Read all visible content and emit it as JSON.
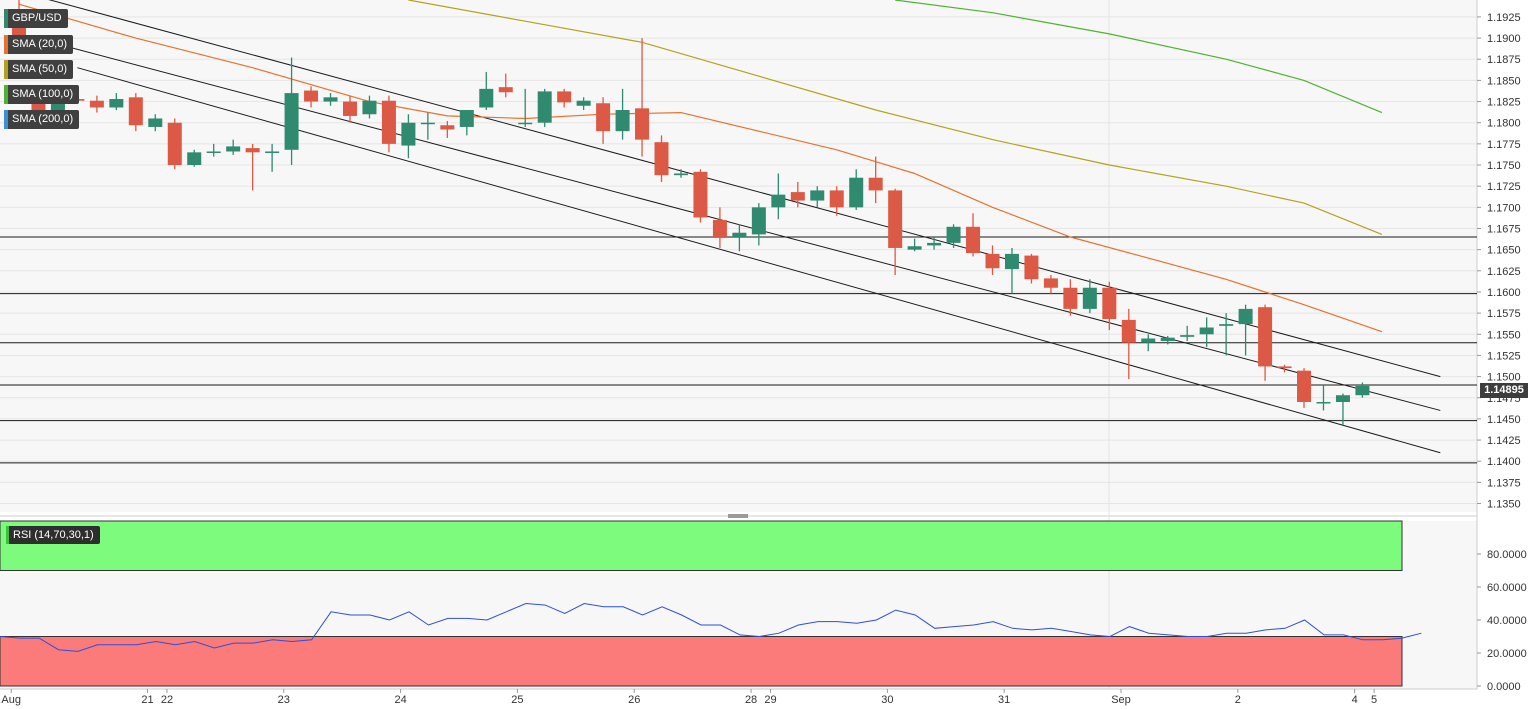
{
  "chart_data": [
    {
      "type": "candlestick",
      "title": "GBP/USD",
      "indicators": [
        {
          "name": "SMA (20,0)",
          "color": "#e8722d"
        },
        {
          "name": "SMA (50,0)",
          "color": "#b5a21c"
        },
        {
          "name": "SMA (100,0)",
          "color": "#4fb32f"
        },
        {
          "name": "SMA (200,0)",
          "color": "#3a8fd6"
        }
      ],
      "current_price": "1.14895",
      "ylim": [
        1.134,
        1.1945
      ],
      "y_ticks": [
        "1.1925",
        "1.1900",
        "1.1875",
        "1.1850",
        "1.1825",
        "1.1800",
        "1.1775",
        "1.1750",
        "1.1725",
        "1.1700",
        "1.1675",
        "1.1650",
        "1.1625",
        "1.1600",
        "1.1575",
        "1.1550",
        "1.1525",
        "1.1500",
        "1.1475",
        "1.1450",
        "1.1425",
        "1.1400",
        "1.1375",
        "1.1350"
      ],
      "x_labels": [
        {
          "label": "Aug",
          "i": 0
        },
        {
          "label": "21",
          "i": 7
        },
        {
          "label": "22",
          "i": 8
        },
        {
          "label": "23",
          "i": 14
        },
        {
          "label": "24",
          "i": 20
        },
        {
          "label": "25",
          "i": 26
        },
        {
          "label": "26",
          "i": 32
        },
        {
          "label": "28",
          "i": 38
        },
        {
          "label": "29",
          "i": 39
        },
        {
          "label": "30",
          "i": 45
        },
        {
          "label": "31",
          "i": 51
        },
        {
          "label": "Sep",
          "i": 57
        },
        {
          "label": "2",
          "i": 63
        },
        {
          "label": "4",
          "i": 69
        },
        {
          "label": "5",
          "i": 70
        }
      ],
      "horizontal_levels": [
        1.1665,
        1.1598,
        1.154,
        1.149,
        1.1448,
        1.1398
      ],
      "up_color": "#2f8a70",
      "down_color": "#dc5a45",
      "candles": [
        {
          "o": 1.1915,
          "h": 1.1945,
          "l": 1.1895,
          "c": 1.19
        },
        {
          "o": 1.183,
          "h": 1.184,
          "l": 1.1795,
          "c": 1.1815
        },
        {
          "o": 1.1808,
          "h": 1.183,
          "l": 1.1805,
          "c": 1.183
        },
        {
          "o": 1.1828,
          "h": 1.1832,
          "l": 1.1825,
          "c": 1.1826
        },
        {
          "o": 1.1826,
          "h": 1.1832,
          "l": 1.1812,
          "c": 1.1818
        },
        {
          "o": 1.1818,
          "h": 1.1835,
          "l": 1.1815,
          "c": 1.1828
        },
        {
          "o": 1.183,
          "h": 1.1835,
          "l": 1.179,
          "c": 1.1797
        },
        {
          "o": 1.1795,
          "h": 1.181,
          "l": 1.179,
          "c": 1.1805
        },
        {
          "o": 1.18,
          "h": 1.1805,
          "l": 1.1745,
          "c": 1.175
        },
        {
          "o": 1.175,
          "h": 1.1768,
          "l": 1.1748,
          "c": 1.1765
        },
        {
          "o": 1.1765,
          "h": 1.1775,
          "l": 1.176,
          "c": 1.1766
        },
        {
          "o": 1.1766,
          "h": 1.178,
          "l": 1.1762,
          "c": 1.1772
        },
        {
          "o": 1.177,
          "h": 1.1775,
          "l": 1.172,
          "c": 1.1765
        },
        {
          "o": 1.1765,
          "h": 1.1775,
          "l": 1.1742,
          "c": 1.1766
        },
        {
          "o": 1.1768,
          "h": 1.1877,
          "l": 1.175,
          "c": 1.1835
        },
        {
          "o": 1.1838,
          "h": 1.1843,
          "l": 1.1818,
          "c": 1.1825
        },
        {
          "o": 1.1825,
          "h": 1.1835,
          "l": 1.182,
          "c": 1.183
        },
        {
          "o": 1.1825,
          "h": 1.1832,
          "l": 1.18,
          "c": 1.1808
        },
        {
          "o": 1.181,
          "h": 1.1832,
          "l": 1.1805,
          "c": 1.1826
        },
        {
          "o": 1.1826,
          "h": 1.1832,
          "l": 1.1765,
          "c": 1.1775
        },
        {
          "o": 1.1773,
          "h": 1.181,
          "l": 1.1758,
          "c": 1.18
        },
        {
          "o": 1.18,
          "h": 1.1812,
          "l": 1.178,
          "c": 1.18
        },
        {
          "o": 1.1797,
          "h": 1.1802,
          "l": 1.1782,
          "c": 1.1792
        },
        {
          "o": 1.1795,
          "h": 1.1815,
          "l": 1.1785,
          "c": 1.1815
        },
        {
          "o": 1.1818,
          "h": 1.186,
          "l": 1.1815,
          "c": 1.184
        },
        {
          "o": 1.1842,
          "h": 1.1858,
          "l": 1.183,
          "c": 1.1836
        },
        {
          "o": 1.18,
          "h": 1.184,
          "l": 1.1795,
          "c": 1.18
        },
        {
          "o": 1.18,
          "h": 1.184,
          "l": 1.1795,
          "c": 1.1837
        },
        {
          "o": 1.1837,
          "h": 1.184,
          "l": 1.1818,
          "c": 1.1824
        },
        {
          "o": 1.182,
          "h": 1.183,
          "l": 1.1815,
          "c": 1.1826
        },
        {
          "o": 1.1823,
          "h": 1.183,
          "l": 1.1775,
          "c": 1.179
        },
        {
          "o": 1.179,
          "h": 1.184,
          "l": 1.178,
          "c": 1.1815
        },
        {
          "o": 1.1817,
          "h": 1.19,
          "l": 1.176,
          "c": 1.178
        },
        {
          "o": 1.1777,
          "h": 1.1785,
          "l": 1.173,
          "c": 1.1738
        },
        {
          "o": 1.1738,
          "h": 1.1745,
          "l": 1.1735,
          "c": 1.174
        },
        {
          "o": 1.1742,
          "h": 1.1745,
          "l": 1.1682,
          "c": 1.1688
        },
        {
          "o": 1.1685,
          "h": 1.17,
          "l": 1.1652,
          "c": 1.1665
        },
        {
          "o": 1.1665,
          "h": 1.168,
          "l": 1.1648,
          "c": 1.167
        },
        {
          "o": 1.1668,
          "h": 1.1705,
          "l": 1.1655,
          "c": 1.17
        },
        {
          "o": 1.17,
          "h": 1.174,
          "l": 1.1686,
          "c": 1.1715
        },
        {
          "o": 1.1718,
          "h": 1.173,
          "l": 1.17,
          "c": 1.1708
        },
        {
          "o": 1.1708,
          "h": 1.1725,
          "l": 1.17,
          "c": 1.172
        },
        {
          "o": 1.172,
          "h": 1.1725,
          "l": 1.169,
          "c": 1.17
        },
        {
          "o": 1.17,
          "h": 1.1745,
          "l": 1.1697,
          "c": 1.1735
        },
        {
          "o": 1.1735,
          "h": 1.176,
          "l": 1.1705,
          "c": 1.172
        },
        {
          "o": 1.172,
          "h": 1.1722,
          "l": 1.162,
          "c": 1.1652
        },
        {
          "o": 1.165,
          "h": 1.1663,
          "l": 1.1648,
          "c": 1.1654
        },
        {
          "o": 1.1655,
          "h": 1.1665,
          "l": 1.165,
          "c": 1.1658
        },
        {
          "o": 1.1658,
          "h": 1.168,
          "l": 1.1652,
          "c": 1.1677
        },
        {
          "o": 1.1677,
          "h": 1.1693,
          "l": 1.1642,
          "c": 1.1646
        },
        {
          "o": 1.1645,
          "h": 1.1655,
          "l": 1.162,
          "c": 1.1628
        },
        {
          "o": 1.1627,
          "h": 1.1652,
          "l": 1.1598,
          "c": 1.1645
        },
        {
          "o": 1.1643,
          "h": 1.1645,
          "l": 1.161,
          "c": 1.1615
        },
        {
          "o": 1.1616,
          "h": 1.162,
          "l": 1.1598,
          "c": 1.1605
        },
        {
          "o": 1.1605,
          "h": 1.1615,
          "l": 1.1572,
          "c": 1.158
        },
        {
          "o": 1.158,
          "h": 1.1615,
          "l": 1.1575,
          "c": 1.1605
        },
        {
          "o": 1.1605,
          "h": 1.1612,
          "l": 1.1555,
          "c": 1.1568
        },
        {
          "o": 1.1567,
          "h": 1.158,
          "l": 1.1497,
          "c": 1.154
        },
        {
          "o": 1.154,
          "h": 1.155,
          "l": 1.153,
          "c": 1.1545
        },
        {
          "o": 1.1542,
          "h": 1.1548,
          "l": 1.1538,
          "c": 1.1546
        },
        {
          "o": 1.1547,
          "h": 1.156,
          "l": 1.1542,
          "c": 1.1549
        },
        {
          "o": 1.155,
          "h": 1.157,
          "l": 1.1535,
          "c": 1.1558
        },
        {
          "o": 1.156,
          "h": 1.1575,
          "l": 1.1525,
          "c": 1.1562
        },
        {
          "o": 1.1562,
          "h": 1.1585,
          "l": 1.1525,
          "c": 1.158
        },
        {
          "o": 1.1582,
          "h": 1.1585,
          "l": 1.1495,
          "c": 1.1512
        },
        {
          "o": 1.1512,
          "h": 1.1514,
          "l": 1.1505,
          "c": 1.151
        },
        {
          "o": 1.1507,
          "h": 1.151,
          "l": 1.1463,
          "c": 1.147
        },
        {
          "o": 1.147,
          "h": 1.149,
          "l": 1.146,
          "c": 1.147
        },
        {
          "o": 1.147,
          "h": 1.148,
          "l": 1.1443,
          "c": 1.1478
        },
        {
          "o": 1.1478,
          "h": 1.1493,
          "l": 1.1475,
          "c": 1.1489
        }
      ],
      "sma20": [
        [
          0,
          1.194
        ],
        [
          6,
          1.19
        ],
        [
          12,
          1.1865
        ],
        [
          18,
          1.1825
        ],
        [
          22,
          1.1808
        ],
        [
          26,
          1.1805
        ],
        [
          30,
          1.181
        ],
        [
          34,
          1.1812
        ],
        [
          38,
          1.179
        ],
        [
          42,
          1.1768
        ],
        [
          46,
          1.174
        ],
        [
          50,
          1.17
        ],
        [
          54,
          1.1665
        ],
        [
          58,
          1.164
        ],
        [
          62,
          1.1615
        ],
        [
          66,
          1.1585
        ],
        [
          70,
          1.1553
        ]
      ],
      "sma50": [
        [
          20,
          1.1945
        ],
        [
          26,
          1.192
        ],
        [
          32,
          1.1895
        ],
        [
          38,
          1.1855
        ],
        [
          44,
          1.1815
        ],
        [
          50,
          1.178
        ],
        [
          56,
          1.175
        ],
        [
          62,
          1.1725
        ],
        [
          66,
          1.1705
        ],
        [
          70,
          1.1668
        ]
      ],
      "sma100": [
        [
          45,
          1.1945
        ],
        [
          50,
          1.193
        ],
        [
          56,
          1.1905
        ],
        [
          62,
          1.1875
        ],
        [
          66,
          1.185
        ],
        [
          70,
          1.1812
        ]
      ],
      "channel_lines": [
        {
          "from": [
            0,
            1.1955
          ],
          "to": [
            73,
            1.15
          ]
        },
        {
          "from": [
            0,
            1.1905
          ],
          "to": [
            73,
            1.146
          ]
        },
        {
          "from": [
            3,
            1.1865
          ],
          "to": [
            73,
            1.141
          ]
        }
      ]
    },
    {
      "type": "line",
      "title": "RSI (14,70,30,1)",
      "ylim": [
        0,
        100
      ],
      "y_ticks": [
        "80.0000",
        "60.0000",
        "40.0000",
        "20.0000",
        "0.0000"
      ],
      "overbought": 70,
      "oversold": 30,
      "values": [
        30,
        29,
        29,
        22,
        21,
        25,
        25,
        25,
        27,
        25,
        27,
        23,
        26,
        26,
        28,
        27,
        28,
        45,
        43,
        43,
        40,
        45,
        37,
        41,
        41,
        40,
        45,
        50,
        49,
        44,
        50,
        48,
        48,
        43,
        48,
        43,
        37,
        37,
        31,
        30,
        32,
        37,
        39,
        39,
        38,
        40,
        46,
        43,
        35,
        36,
        37,
        39,
        35,
        34,
        35,
        33,
        31,
        30,
        36,
        32,
        31,
        30,
        30,
        32,
        32,
        34,
        35,
        40,
        31,
        31,
        28,
        28,
        29,
        32
      ]
    }
  ]
}
